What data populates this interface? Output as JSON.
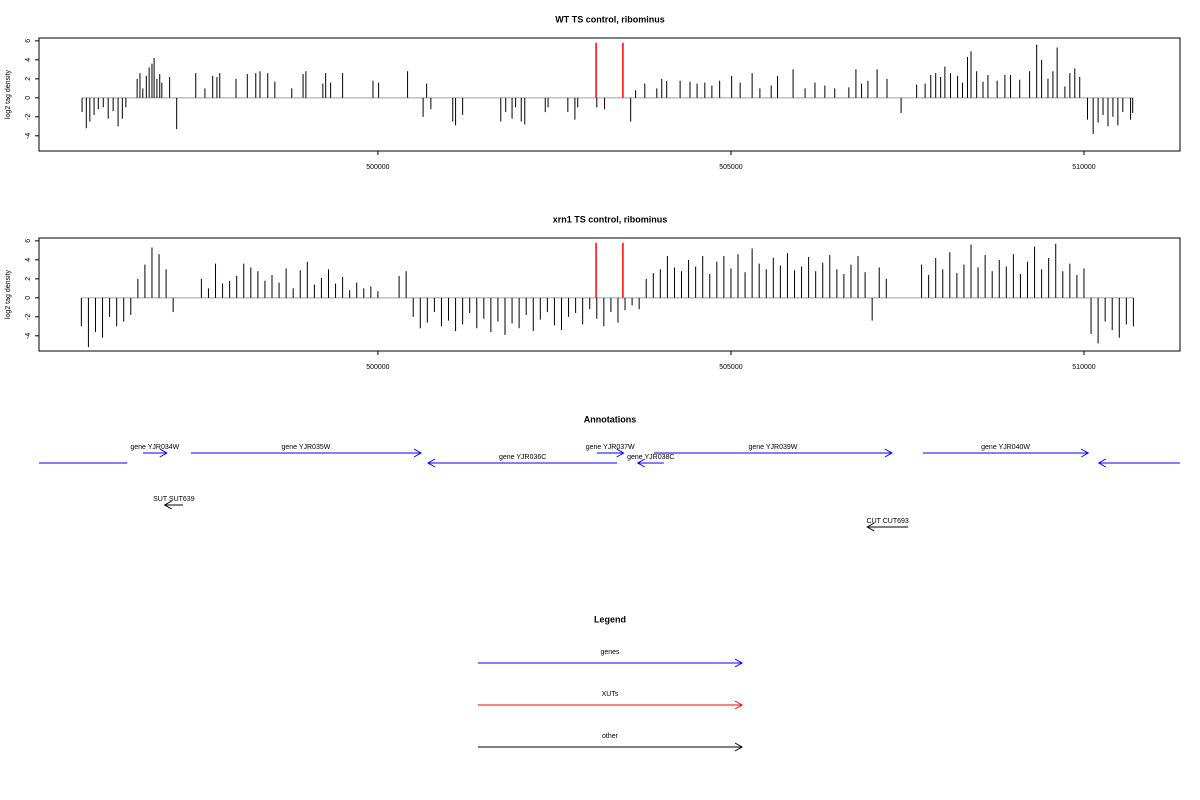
{
  "chart_data": [
    {
      "type": "bar",
      "title": "WT TS control, ribominus",
      "y_label": "log2 tag density",
      "xlim": [
        495200,
        511360
      ],
      "xticks": [
        500000,
        505000,
        510000
      ],
      "ylim": [
        -5.6,
        6.3
      ],
      "yticks": [
        -4,
        -2,
        0,
        2,
        4,
        6
      ],
      "color": "#000000",
      "baseline_color": "#a0a0a0",
      "x": [
        495810,
        495870,
        495920,
        495980,
        496040,
        496110,
        496180,
        496250,
        496320,
        496380,
        496430,
        496590,
        496630,
        496670,
        496720,
        496760,
        496800,
        496830,
        496870,
        496910,
        496940,
        497050,
        497150,
        497420,
        497550,
        497660,
        497720,
        497760,
        497990,
        498150,
        498270,
        498330,
        498440,
        498540,
        498780,
        498940,
        498980,
        499220,
        499260,
        499330,
        499500,
        499930,
        500010,
        500420,
        500640,
        500690,
        500750,
        501060,
        501100,
        501200,
        501740,
        501810,
        501900,
        501950,
        502030,
        502080,
        502370,
        502410,
        502690,
        502790,
        502830,
        503100,
        503210,
        503580,
        503650,
        503780,
        503950,
        504020,
        504090,
        504280,
        504420,
        504520,
        504630,
        504730,
        504840,
        505010,
        505130,
        505300,
        505410,
        505570,
        505660,
        505880,
        506050,
        506190,
        506330,
        506470,
        506670,
        506770,
        506850,
        506940,
        507070,
        507210,
        507410,
        507630,
        507750,
        507830,
        507900,
        507970,
        508030,
        508110,
        508210,
        508280,
        508350,
        508400,
        508480,
        508570,
        508640,
        508770,
        508880,
        508960,
        509090,
        509230,
        509330,
        509400,
        509490,
        509560,
        509620,
        509730,
        509800,
        509870,
        509940,
        510050,
        510130,
        510200,
        510270,
        510340,
        510410,
        510480,
        510550,
        510660,
        510690
      ],
      "values": [
        -1.5,
        -3.2,
        -2.5,
        -1.8,
        -1.2,
        -1.0,
        -2.2,
        -1.4,
        -3.0,
        -2.2,
        -1.0,
        2.0,
        2.6,
        1.0,
        2.3,
        3.2,
        3.6,
        4.2,
        2.0,
        2.5,
        1.6,
        2.2,
        -3.3,
        2.6,
        1.0,
        2.3,
        2.2,
        2.6,
        2.0,
        2.5,
        2.6,
        2.8,
        2.6,
        1.7,
        1.0,
        2.5,
        2.8,
        1.5,
        2.6,
        1.6,
        2.6,
        1.8,
        1.6,
        2.8,
        -2.0,
        1.5,
        -1.2,
        -2.5,
        -2.9,
        -1.8,
        -2.5,
        -1.5,
        -2.2,
        -1.0,
        -2.5,
        -2.8,
        -1.5,
        -1.0,
        -1.5,
        -2.3,
        -1.0,
        -1.0,
        -1.2,
        -2.5,
        0.8,
        1.5,
        1.0,
        2.0,
        1.8,
        1.8,
        1.7,
        1.5,
        1.6,
        1.3,
        1.8,
        2.3,
        1.6,
        2.6,
        1.0,
        1.3,
        2.3,
        3.0,
        1.0,
        1.6,
        1.3,
        1.0,
        1.1,
        3.0,
        1.5,
        1.8,
        3.0,
        2.0,
        -1.6,
        1.4,
        1.5,
        2.4,
        2.6,
        2.2,
        3.3,
        2.6,
        2.3,
        1.6,
        4.3,
        4.9,
        2.8,
        1.7,
        2.4,
        1.8,
        2.4,
        2.4,
        1.9,
        2.8,
        5.6,
        4.0,
        2.0,
        2.8,
        5.3,
        1.2,
        2.6,
        3.1,
        2.2,
        -2.3,
        -3.8,
        -2.6,
        -1.8,
        -3.0,
        -2.0,
        -2.9,
        -1.5,
        -2.3,
        -1.6
      ],
      "markers": {
        "x": [
          503090,
          503470
        ],
        "values": [
          5.8,
          5.8
        ],
        "color": "#ff0000"
      }
    },
    {
      "type": "bar",
      "title": "xrn1 TS control, ribominus",
      "y_label": "log2 tag density",
      "xlim": [
        495200,
        511360
      ],
      "xticks": [
        500000,
        505000,
        510000
      ],
      "ylim": [
        -5.6,
        6.3
      ],
      "yticks": [
        -4,
        -2,
        0,
        2,
        4,
        6
      ],
      "color": "#000000",
      "baseline_color": "#a0a0a0",
      "x": [
        495800,
        495900,
        496000,
        496100,
        496200,
        496300,
        496400,
        496500,
        496600,
        496700,
        496800,
        496900,
        497000,
        497100,
        497500,
        497600,
        497700,
        497800,
        497900,
        498000,
        498100,
        498200,
        498300,
        498400,
        498500,
        498600,
        498700,
        498800,
        498900,
        499000,
        499100,
        499200,
        499300,
        499400,
        499500,
        499600,
        499700,
        499800,
        499900,
        500000,
        500300,
        500400,
        500500,
        500600,
        500700,
        500800,
        500900,
        501000,
        501100,
        501200,
        501300,
        501400,
        501500,
        501600,
        501700,
        501800,
        501900,
        502000,
        502100,
        502200,
        502300,
        502400,
        502500,
        502600,
        502700,
        502800,
        502900,
        503000,
        503100,
        503200,
        503300,
        503400,
        503500,
        503600,
        503700,
        503800,
        503900,
        504000,
        504100,
        504200,
        504300,
        504400,
        504500,
        504600,
        504700,
        504800,
        504900,
        505000,
        505100,
        505200,
        505300,
        505400,
        505500,
        505600,
        505700,
        505800,
        505900,
        506000,
        506100,
        506200,
        506300,
        506400,
        506500,
        506600,
        506700,
        506800,
        506900,
        507000,
        507100,
        507200,
        507700,
        507800,
        507900,
        508000,
        508100,
        508200,
        508300,
        508400,
        508500,
        508600,
        508700,
        508800,
        508900,
        509000,
        509100,
        509200,
        509300,
        509400,
        509500,
        509600,
        509700,
        509800,
        509900,
        510000,
        510100,
        510200,
        510300,
        510400,
        510500,
        510600,
        510700
      ],
      "values": [
        -3.0,
        -5.2,
        -3.6,
        -4.2,
        -2.0,
        -3.0,
        -2.5,
        -1.8,
        2.0,
        3.5,
        5.3,
        4.6,
        3.0,
        -1.5,
        2.0,
        1.0,
        3.6,
        1.5,
        1.8,
        2.3,
        3.6,
        3.2,
        2.8,
        1.8,
        2.4,
        1.6,
        3.1,
        1.0,
        2.9,
        3.8,
        1.4,
        2.1,
        3.0,
        1.5,
        2.2,
        0.8,
        1.6,
        1.0,
        1.2,
        0.7,
        2.3,
        2.8,
        -2.0,
        -3.2,
        -2.6,
        -1.5,
        -3.0,
        -2.4,
        -3.5,
        -2.8,
        -1.6,
        -3.2,
        -2.2,
        -3.6,
        -2.5,
        -3.9,
        -2.7,
        -3.2,
        -1.8,
        -3.5,
        -2.3,
        -1.5,
        -2.9,
        -3.4,
        -2.0,
        -1.6,
        -2.8,
        -1.2,
        -2.2,
        -3.0,
        -1.5,
        -2.6,
        -1.3,
        -0.8,
        -1.2,
        2.0,
        2.6,
        3.0,
        4.4,
        3.2,
        2.8,
        4.0,
        3.3,
        4.4,
        2.5,
        3.8,
        4.4,
        3.1,
        4.6,
        2.7,
        5.2,
        3.6,
        3.0,
        4.2,
        3.4,
        4.7,
        2.9,
        3.3,
        4.3,
        2.8,
        3.7,
        4.5,
        3.0,
        2.5,
        3.5,
        4.4,
        2.7,
        -2.4,
        3.2,
        2.0,
        3.5,
        2.4,
        4.2,
        3.0,
        4.8,
        2.6,
        3.5,
        5.6,
        3.2,
        4.5,
        2.8,
        4.0,
        3.3,
        4.6,
        2.5,
        3.8,
        5.4,
        3.0,
        4.2,
        5.7,
        2.8,
        3.6,
        2.4,
        3.1,
        -3.8,
        -4.8,
        -2.5,
        -3.4,
        -4.2,
        -2.8,
        -3.0
      ],
      "markers": {
        "x": [
          503090,
          503470
        ],
        "values": [
          5.8,
          5.8
        ],
        "color": "#ff0000"
      }
    },
    {
      "type": "annotation",
      "title": "Annotations",
      "xlim": [
        495200,
        511360
      ],
      "features": [
        {
          "start": 494000,
          "end": 496450,
          "strand": "-",
          "color": "#0000ff"
        },
        {
          "label": "gene YJR034W",
          "start": 496670,
          "end": 497010,
          "strand": "+",
          "color": "#0000ff"
        },
        {
          "label": "gene YJR035W",
          "start": 497350,
          "end": 500610,
          "strand": "+",
          "color": "#0000ff"
        },
        {
          "label": "gene YJR036C",
          "start": 500710,
          "end": 503390,
          "strand": "-",
          "color": "#0000ff"
        },
        {
          "label": "gene YJR037W",
          "start": 503100,
          "end": 503480,
          "strand": "+",
          "color": "#0000ff"
        },
        {
          "label": "gene YJR038C",
          "start": 503680,
          "end": 504050,
          "strand": "-",
          "color": "#0000ff"
        },
        {
          "label": "gene YJR039W",
          "start": 503910,
          "end": 507280,
          "strand": "+",
          "color": "#0000ff"
        },
        {
          "label": "gene YJR040W",
          "start": 507720,
          "end": 510060,
          "strand": "+",
          "color": "#0000ff"
        },
        {
          "start": 510210,
          "end": 512500,
          "strand": "-",
          "color": "#0000ff"
        },
        {
          "label": "SUT SUT639",
          "start": 496980,
          "end": 497240,
          "strand": "-",
          "color": "#000000"
        },
        {
          "label": "CUT CUT693",
          "start": 506930,
          "end": 507510,
          "strand": "-",
          "color": "#000000"
        }
      ],
      "legend": {
        "title": "Legend",
        "entries": [
          {
            "name": "genes",
            "color": "#0000ff"
          },
          {
            "name": "XUTs",
            "color": "#ff0000"
          },
          {
            "name": "other",
            "color": "#000000"
          }
        ]
      }
    }
  ]
}
